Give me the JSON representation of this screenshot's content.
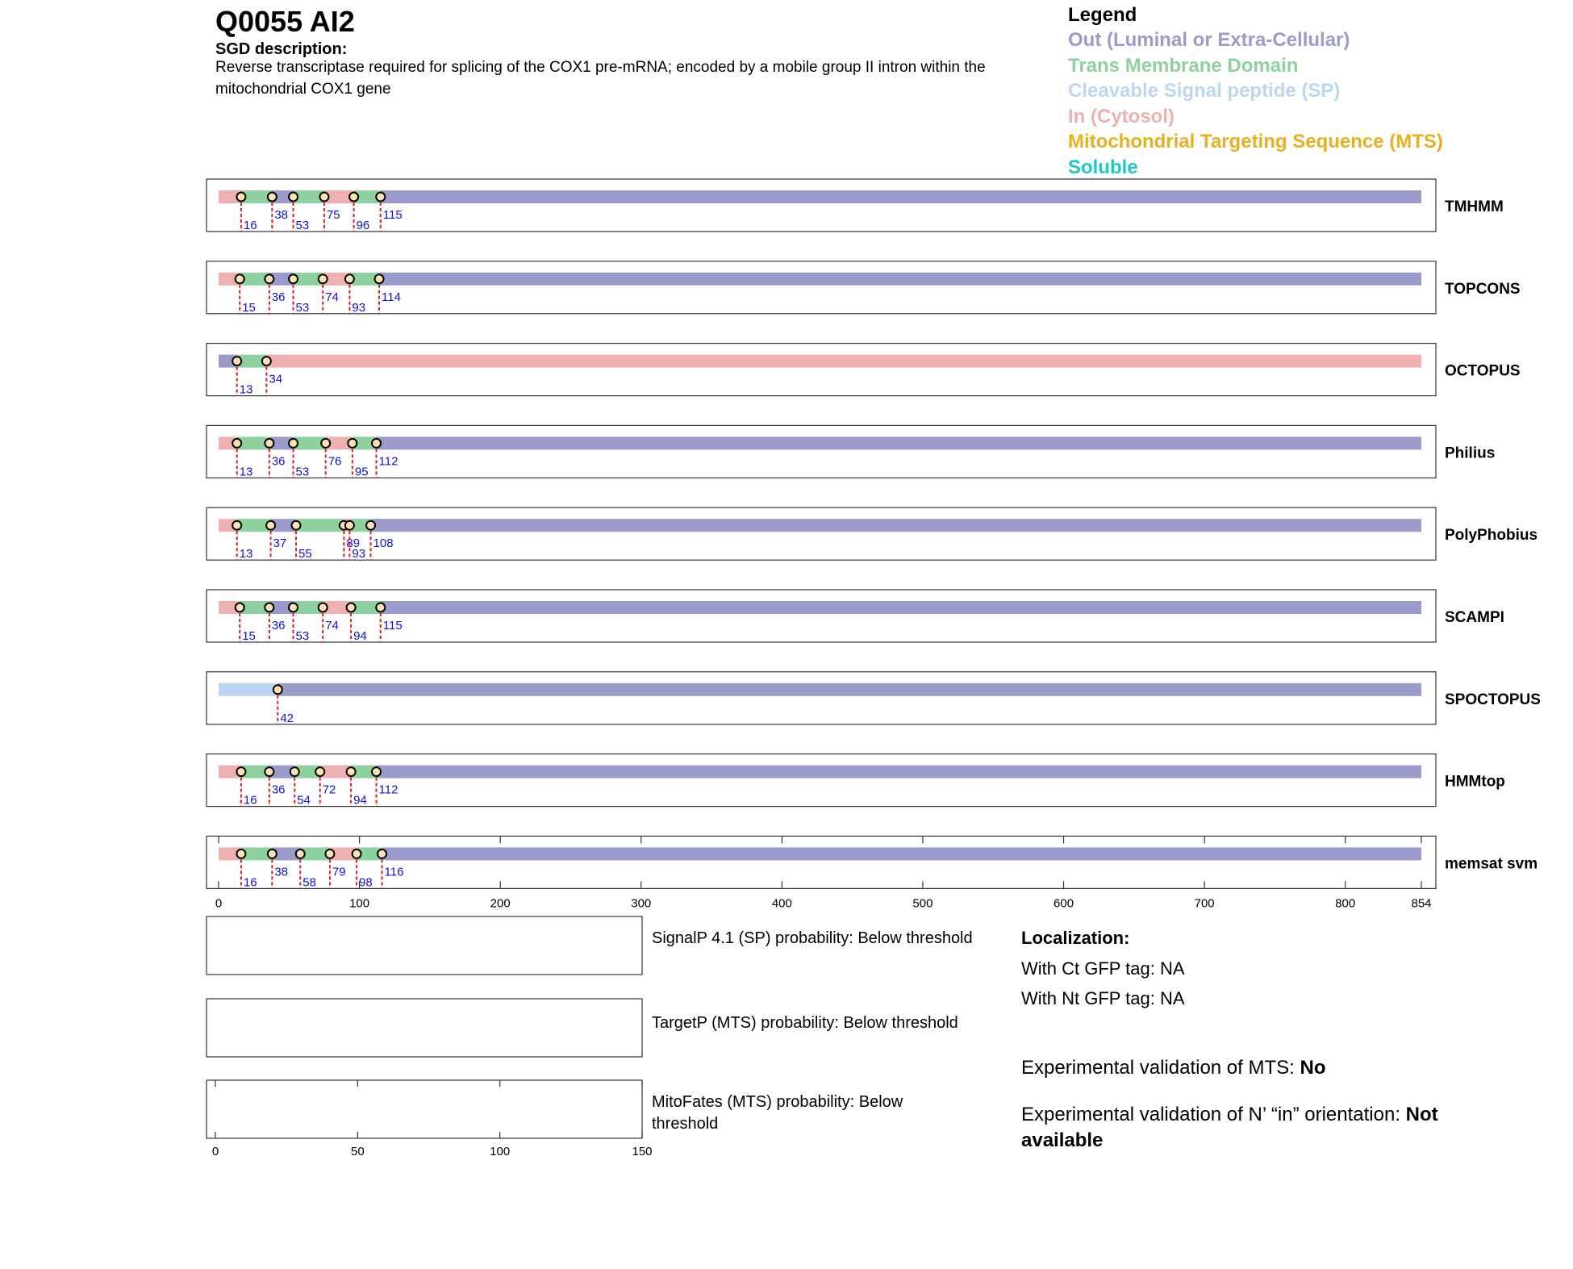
{
  "header": {
    "protein_id": "Q0055  AI2",
    "sgd_label": "SGD description:",
    "sgd_description": "Reverse transcriptase required for splicing of the COX1 pre-mRNA; encoded by a mobile group II intron within the mitochondrial COX1 gene"
  },
  "legend": {
    "title": "Legend",
    "items": [
      {
        "label": "Out (Luminal or Extra-Cellular)",
        "color": "#9b9bcb"
      },
      {
        "label": "Trans Membrane Domain",
        "color": "#8fd19e"
      },
      {
        "label": "Cleavable Signal peptide (SP)",
        "color": "#bcd6f2"
      },
      {
        "label": "In (Cytosol)",
        "color": "#eeb0b0"
      },
      {
        "label": "Mitochondrial Targeting Sequence (MTS)",
        "color": "#e8b020"
      },
      {
        "label": "Soluble",
        "color": "#1ec8c8"
      }
    ]
  },
  "chart_data": {
    "type": "topology-tracks",
    "sequence_length": 854,
    "colors": {
      "out": "#9b9bcb",
      "tm": "#8fd19e",
      "sp": "#bcd6f2",
      "in": "#eeb0b0"
    },
    "x_ticks": [
      0,
      100,
      200,
      300,
      400,
      500,
      600,
      700,
      800,
      854
    ],
    "tracks": [
      {
        "name": "TMHMM",
        "start": "in",
        "segments": [
          "in",
          "tm",
          "out",
          "tm",
          "in",
          "tm",
          "out"
        ],
        "boundaries": [
          16,
          38,
          53,
          75,
          96,
          115
        ]
      },
      {
        "name": "TOPCONS",
        "start": "in",
        "segments": [
          "in",
          "tm",
          "out",
          "tm",
          "in",
          "tm",
          "out"
        ],
        "boundaries": [
          15,
          36,
          53,
          74,
          93,
          114
        ]
      },
      {
        "name": "OCTOPUS",
        "start": "out",
        "segments": [
          "out",
          "tm",
          "in"
        ],
        "boundaries": [
          13,
          34
        ]
      },
      {
        "name": "Philius",
        "start": "in",
        "segments": [
          "in",
          "tm",
          "out",
          "tm",
          "in",
          "tm",
          "out"
        ],
        "boundaries": [
          13,
          36,
          53,
          76,
          95,
          112
        ]
      },
      {
        "name": "PolyPhobius",
        "start": "in",
        "segments": [
          "in",
          "tm",
          "out",
          "tm",
          "in",
          "tm",
          "out"
        ],
        "boundaries": [
          13,
          37,
          55,
          89,
          93,
          108
        ]
      },
      {
        "name": "SCAMPI",
        "start": "in",
        "segments": [
          "in",
          "tm",
          "out",
          "tm",
          "in",
          "tm",
          "out"
        ],
        "boundaries": [
          15,
          36,
          53,
          74,
          94,
          115
        ]
      },
      {
        "name": "SPOCTOPUS",
        "start": "sp",
        "segments": [
          "sp",
          "out"
        ],
        "boundaries": [
          42
        ]
      },
      {
        "name": "HMMtop",
        "start": "in",
        "segments": [
          "in",
          "tm",
          "out",
          "tm",
          "in",
          "tm",
          "out"
        ],
        "boundaries": [
          16,
          36,
          54,
          72,
          94,
          112
        ]
      },
      {
        "name": "memsat svm",
        "start": "in",
        "segments": [
          "in",
          "tm",
          "out",
          "tm",
          "in",
          "tm",
          "out"
        ],
        "boundaries": [
          16,
          38,
          58,
          79,
          98,
          116
        ]
      }
    ],
    "probability_panels": [
      {
        "label": "SignalP 4.1 (SP) probability: Below threshold"
      },
      {
        "label": "TargetP (MTS) probability: Below threshold"
      },
      {
        "label": "MitoFates (MTS) probability: Below threshold"
      }
    ],
    "prob_x_ticks": [
      0,
      50,
      100,
      150
    ]
  },
  "localization": {
    "title": "Localization:",
    "ct_gfp": "With Ct GFP tag: NA",
    "nt_gfp": "With Nt GFP tag: NA"
  },
  "validation": {
    "mts_prefix": "Experimental validation of MTS: ",
    "mts_value": "No",
    "orientation_prefix": "Experimental validation of N’ “in” orientation: ",
    "orientation_value": "Not available"
  }
}
